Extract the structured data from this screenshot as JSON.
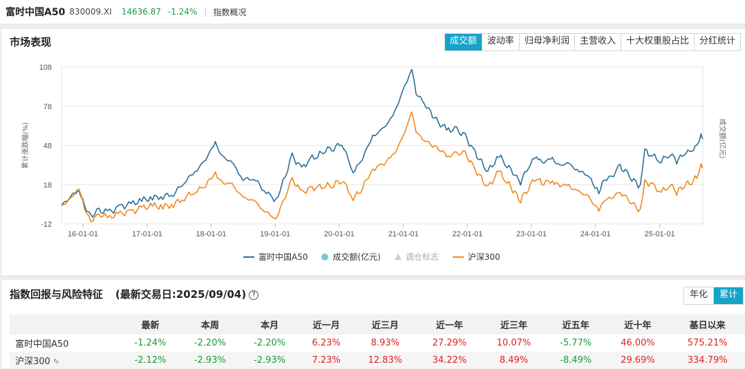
{
  "header": {
    "title": "富时中国A50",
    "code": "830009.XI",
    "price": "14636.87",
    "change": "-1.24%",
    "link": "指数概况"
  },
  "market": {
    "title": "市场表现",
    "tabs": [
      "成交额",
      "波动率",
      "归母净利润",
      "主营收入",
      "十大权重股占比",
      "分红统计"
    ],
    "active_tab": 0
  },
  "chart_data": {
    "type": "line",
    "title": "",
    "ylabel": "累计涨跌幅(%)",
    "y2label": "成交额(亿元)",
    "ylim": [
      -12,
      108
    ],
    "yticks": [
      -12,
      18,
      48,
      78,
      108
    ],
    "xlim": [
      "2015-09-01",
      "2025-09-04"
    ],
    "xticks": [
      {
        "date": "2016-01-01",
        "label": "16-01-01"
      },
      {
        "date": "2017-01-01",
        "label": "17-01-01"
      },
      {
        "date": "2018-01-01",
        "label": "18-01-01"
      },
      {
        "date": "2019-01-01",
        "label": "19-01-01"
      },
      {
        "date": "2020-01-01",
        "label": "20-01-01"
      },
      {
        "date": "2021-01-01",
        "label": "21-01-01"
      },
      {
        "date": "2022-01-01",
        "label": "22-01-01"
      },
      {
        "date": "2023-01-01",
        "label": "23-01-01"
      },
      {
        "date": "2024-01-01",
        "label": "24-01-01"
      },
      {
        "date": "2025-01-01",
        "label": "25-01-01"
      }
    ],
    "grid": true,
    "legend_position": "bottom-center",
    "legend": [
      {
        "label": "富时中国A50",
        "kind": "line",
        "color": "#2b6f97"
      },
      {
        "label": "成交额(亿元)",
        "kind": "dot",
        "color": "#79c6d6"
      },
      {
        "label": "调仓标志",
        "kind": "triangle",
        "color": "#cccccc"
      },
      {
        "label": "沪深300",
        "kind": "line",
        "color": "#f0881c"
      }
    ],
    "series": [
      {
        "name": "富时中国A50",
        "color": "#2b6f97",
        "points": [
          [
            "2015-09-01",
            2
          ],
          [
            "2015-10-15",
            8
          ],
          [
            "2015-11-20",
            12
          ],
          [
            "2015-12-10",
            14
          ],
          [
            "2016-01-10",
            2
          ],
          [
            "2016-02-15",
            -6
          ],
          [
            "2016-04-01",
            -2
          ],
          [
            "2016-06-01",
            -3
          ],
          [
            "2016-08-01",
            1
          ],
          [
            "2016-10-01",
            3
          ],
          [
            "2016-12-01",
            6
          ],
          [
            "2017-02-01",
            8
          ],
          [
            "2017-04-01",
            9
          ],
          [
            "2017-06-01",
            11
          ],
          [
            "2017-08-01",
            20
          ],
          [
            "2017-10-01",
            28
          ],
          [
            "2017-11-20",
            35
          ],
          [
            "2018-01-25",
            50
          ],
          [
            "2018-03-01",
            40
          ],
          [
            "2018-05-01",
            35
          ],
          [
            "2018-07-01",
            22
          ],
          [
            "2018-09-01",
            23
          ],
          [
            "2018-10-30",
            14
          ],
          [
            "2018-12-15",
            8
          ],
          [
            "2019-01-05",
            6
          ],
          [
            "2019-02-15",
            20
          ],
          [
            "2019-04-08",
            40
          ],
          [
            "2019-06-01",
            30
          ],
          [
            "2019-07-20",
            38
          ],
          [
            "2019-09-01",
            40
          ],
          [
            "2019-10-15",
            45
          ],
          [
            "2019-12-01",
            46
          ],
          [
            "2020-01-15",
            50
          ],
          [
            "2020-03-20",
            28
          ],
          [
            "2020-05-01",
            35
          ],
          [
            "2020-07-10",
            55
          ],
          [
            "2020-09-01",
            60
          ],
          [
            "2020-11-01",
            70
          ],
          [
            "2020-12-15",
            85
          ],
          [
            "2021-02-18",
            107
          ],
          [
            "2021-03-15",
            88
          ],
          [
            "2021-05-01",
            80
          ],
          [
            "2021-07-20",
            65
          ],
          [
            "2021-09-15",
            60
          ],
          [
            "2021-11-01",
            60
          ],
          [
            "2021-12-20",
            55
          ],
          [
            "2022-02-01",
            45
          ],
          [
            "2022-04-27",
            28
          ],
          [
            "2022-06-30",
            40
          ],
          [
            "2022-08-15",
            33
          ],
          [
            "2022-10-31",
            20
          ],
          [
            "2022-12-15",
            32
          ],
          [
            "2023-01-30",
            40
          ],
          [
            "2023-03-01",
            35
          ],
          [
            "2023-05-01",
            38
          ],
          [
            "2023-06-01",
            33
          ],
          [
            "2023-08-01",
            34
          ],
          [
            "2023-10-01",
            28
          ],
          [
            "2023-11-15",
            26
          ],
          [
            "2024-01-20",
            12
          ],
          [
            "2024-02-20",
            22
          ],
          [
            "2024-04-01",
            24
          ],
          [
            "2024-05-20",
            32
          ],
          [
            "2024-07-01",
            26
          ],
          [
            "2024-09-13",
            16
          ],
          [
            "2024-10-08",
            44
          ],
          [
            "2024-11-20",
            40
          ],
          [
            "2025-01-10",
            36
          ],
          [
            "2025-03-01",
            42
          ],
          [
            "2025-04-08",
            36
          ],
          [
            "2025-05-20",
            42
          ],
          [
            "2025-07-01",
            44
          ],
          [
            "2025-08-01",
            48
          ],
          [
            "2025-08-25",
            56
          ],
          [
            "2025-09-04",
            53
          ]
        ]
      },
      {
        "name": "沪深300",
        "color": "#f0881c",
        "points": [
          [
            "2015-09-01",
            2
          ],
          [
            "2015-10-15",
            6
          ],
          [
            "2015-11-20",
            12
          ],
          [
            "2015-12-10",
            15
          ],
          [
            "2016-01-10",
            0
          ],
          [
            "2016-02-15",
            -10
          ],
          [
            "2016-04-01",
            -5
          ],
          [
            "2016-06-01",
            -7
          ],
          [
            "2016-08-01",
            -4
          ],
          [
            "2016-10-01",
            -3
          ],
          [
            "2016-12-01",
            0
          ],
          [
            "2017-02-01",
            2
          ],
          [
            "2017-04-01",
            1
          ],
          [
            "2017-06-01",
            3
          ],
          [
            "2017-08-01",
            8
          ],
          [
            "2017-10-01",
            13
          ],
          [
            "2017-11-20",
            16
          ],
          [
            "2018-01-25",
            27
          ],
          [
            "2018-03-01",
            20
          ],
          [
            "2018-05-01",
            18
          ],
          [
            "2018-07-01",
            8
          ],
          [
            "2018-09-01",
            6
          ],
          [
            "2018-10-30",
            -2
          ],
          [
            "2018-12-15",
            -6
          ],
          [
            "2019-01-05",
            -8
          ],
          [
            "2019-02-15",
            5
          ],
          [
            "2019-04-08",
            22
          ],
          [
            "2019-06-01",
            12
          ],
          [
            "2019-07-20",
            15
          ],
          [
            "2019-09-01",
            16
          ],
          [
            "2019-10-15",
            17
          ],
          [
            "2019-12-01",
            18
          ],
          [
            "2020-01-15",
            22
          ],
          [
            "2020-03-20",
            8
          ],
          [
            "2020-05-01",
            13
          ],
          [
            "2020-07-10",
            30
          ],
          [
            "2020-09-01",
            33
          ],
          [
            "2020-11-01",
            40
          ],
          [
            "2020-12-15",
            50
          ],
          [
            "2021-02-18",
            73
          ],
          [
            "2021-03-15",
            58
          ],
          [
            "2021-05-01",
            52
          ],
          [
            "2021-07-20",
            45
          ],
          [
            "2021-09-15",
            40
          ],
          [
            "2021-11-01",
            42
          ],
          [
            "2021-12-20",
            42
          ],
          [
            "2022-02-01",
            32
          ],
          [
            "2022-04-27",
            16
          ],
          [
            "2022-06-30",
            28
          ],
          [
            "2022-08-15",
            20
          ],
          [
            "2022-10-31",
            6
          ],
          [
            "2022-12-15",
            16
          ],
          [
            "2023-01-30",
            24
          ],
          [
            "2023-03-01",
            19
          ],
          [
            "2023-05-01",
            21
          ],
          [
            "2023-06-01",
            18
          ],
          [
            "2023-08-01",
            17
          ],
          [
            "2023-10-01",
            12
          ],
          [
            "2023-11-15",
            10
          ],
          [
            "2024-01-20",
            -2
          ],
          [
            "2024-02-20",
            6
          ],
          [
            "2024-04-01",
            8
          ],
          [
            "2024-05-20",
            12
          ],
          [
            "2024-07-01",
            7
          ],
          [
            "2024-09-13",
            -2
          ],
          [
            "2024-10-08",
            20
          ],
          [
            "2024-11-20",
            18
          ],
          [
            "2025-01-10",
            12
          ],
          [
            "2025-03-01",
            18
          ],
          [
            "2025-04-08",
            12
          ],
          [
            "2025-05-20",
            18
          ],
          [
            "2025-07-01",
            20
          ],
          [
            "2025-08-01",
            24
          ],
          [
            "2025-08-25",
            34
          ],
          [
            "2025-09-04",
            32
          ]
        ]
      }
    ]
  },
  "returns": {
    "title": "指数回报与风险特征",
    "subtitle": "(最新交易日:2025/09/04)",
    "help": "?",
    "mode_tabs": [
      "年化",
      "累计"
    ],
    "active_mode": 1,
    "columns": [
      "",
      "最新",
      "本周",
      "本月",
      "近一月",
      "近三月",
      "近一年",
      "近三年",
      "近五年",
      "近十年",
      "基日以来"
    ],
    "rows": [
      {
        "name": "富时中国A50",
        "edit_icon": false,
        "values": [
          "-1.24%",
          "-2.20%",
          "-2.20%",
          "6.23%",
          "8.93%",
          "27.29%",
          "10.07%",
          "-5.77%",
          "46.00%",
          "575.21%"
        ]
      },
      {
        "name": "沪深300",
        "edit_icon": true,
        "values": [
          "-2.12%",
          "-2.93%",
          "-2.93%",
          "7.23%",
          "12.83%",
          "34.22%",
          "8.49%",
          "-8.49%",
          "29.69%",
          "334.79%"
        ]
      }
    ]
  }
}
